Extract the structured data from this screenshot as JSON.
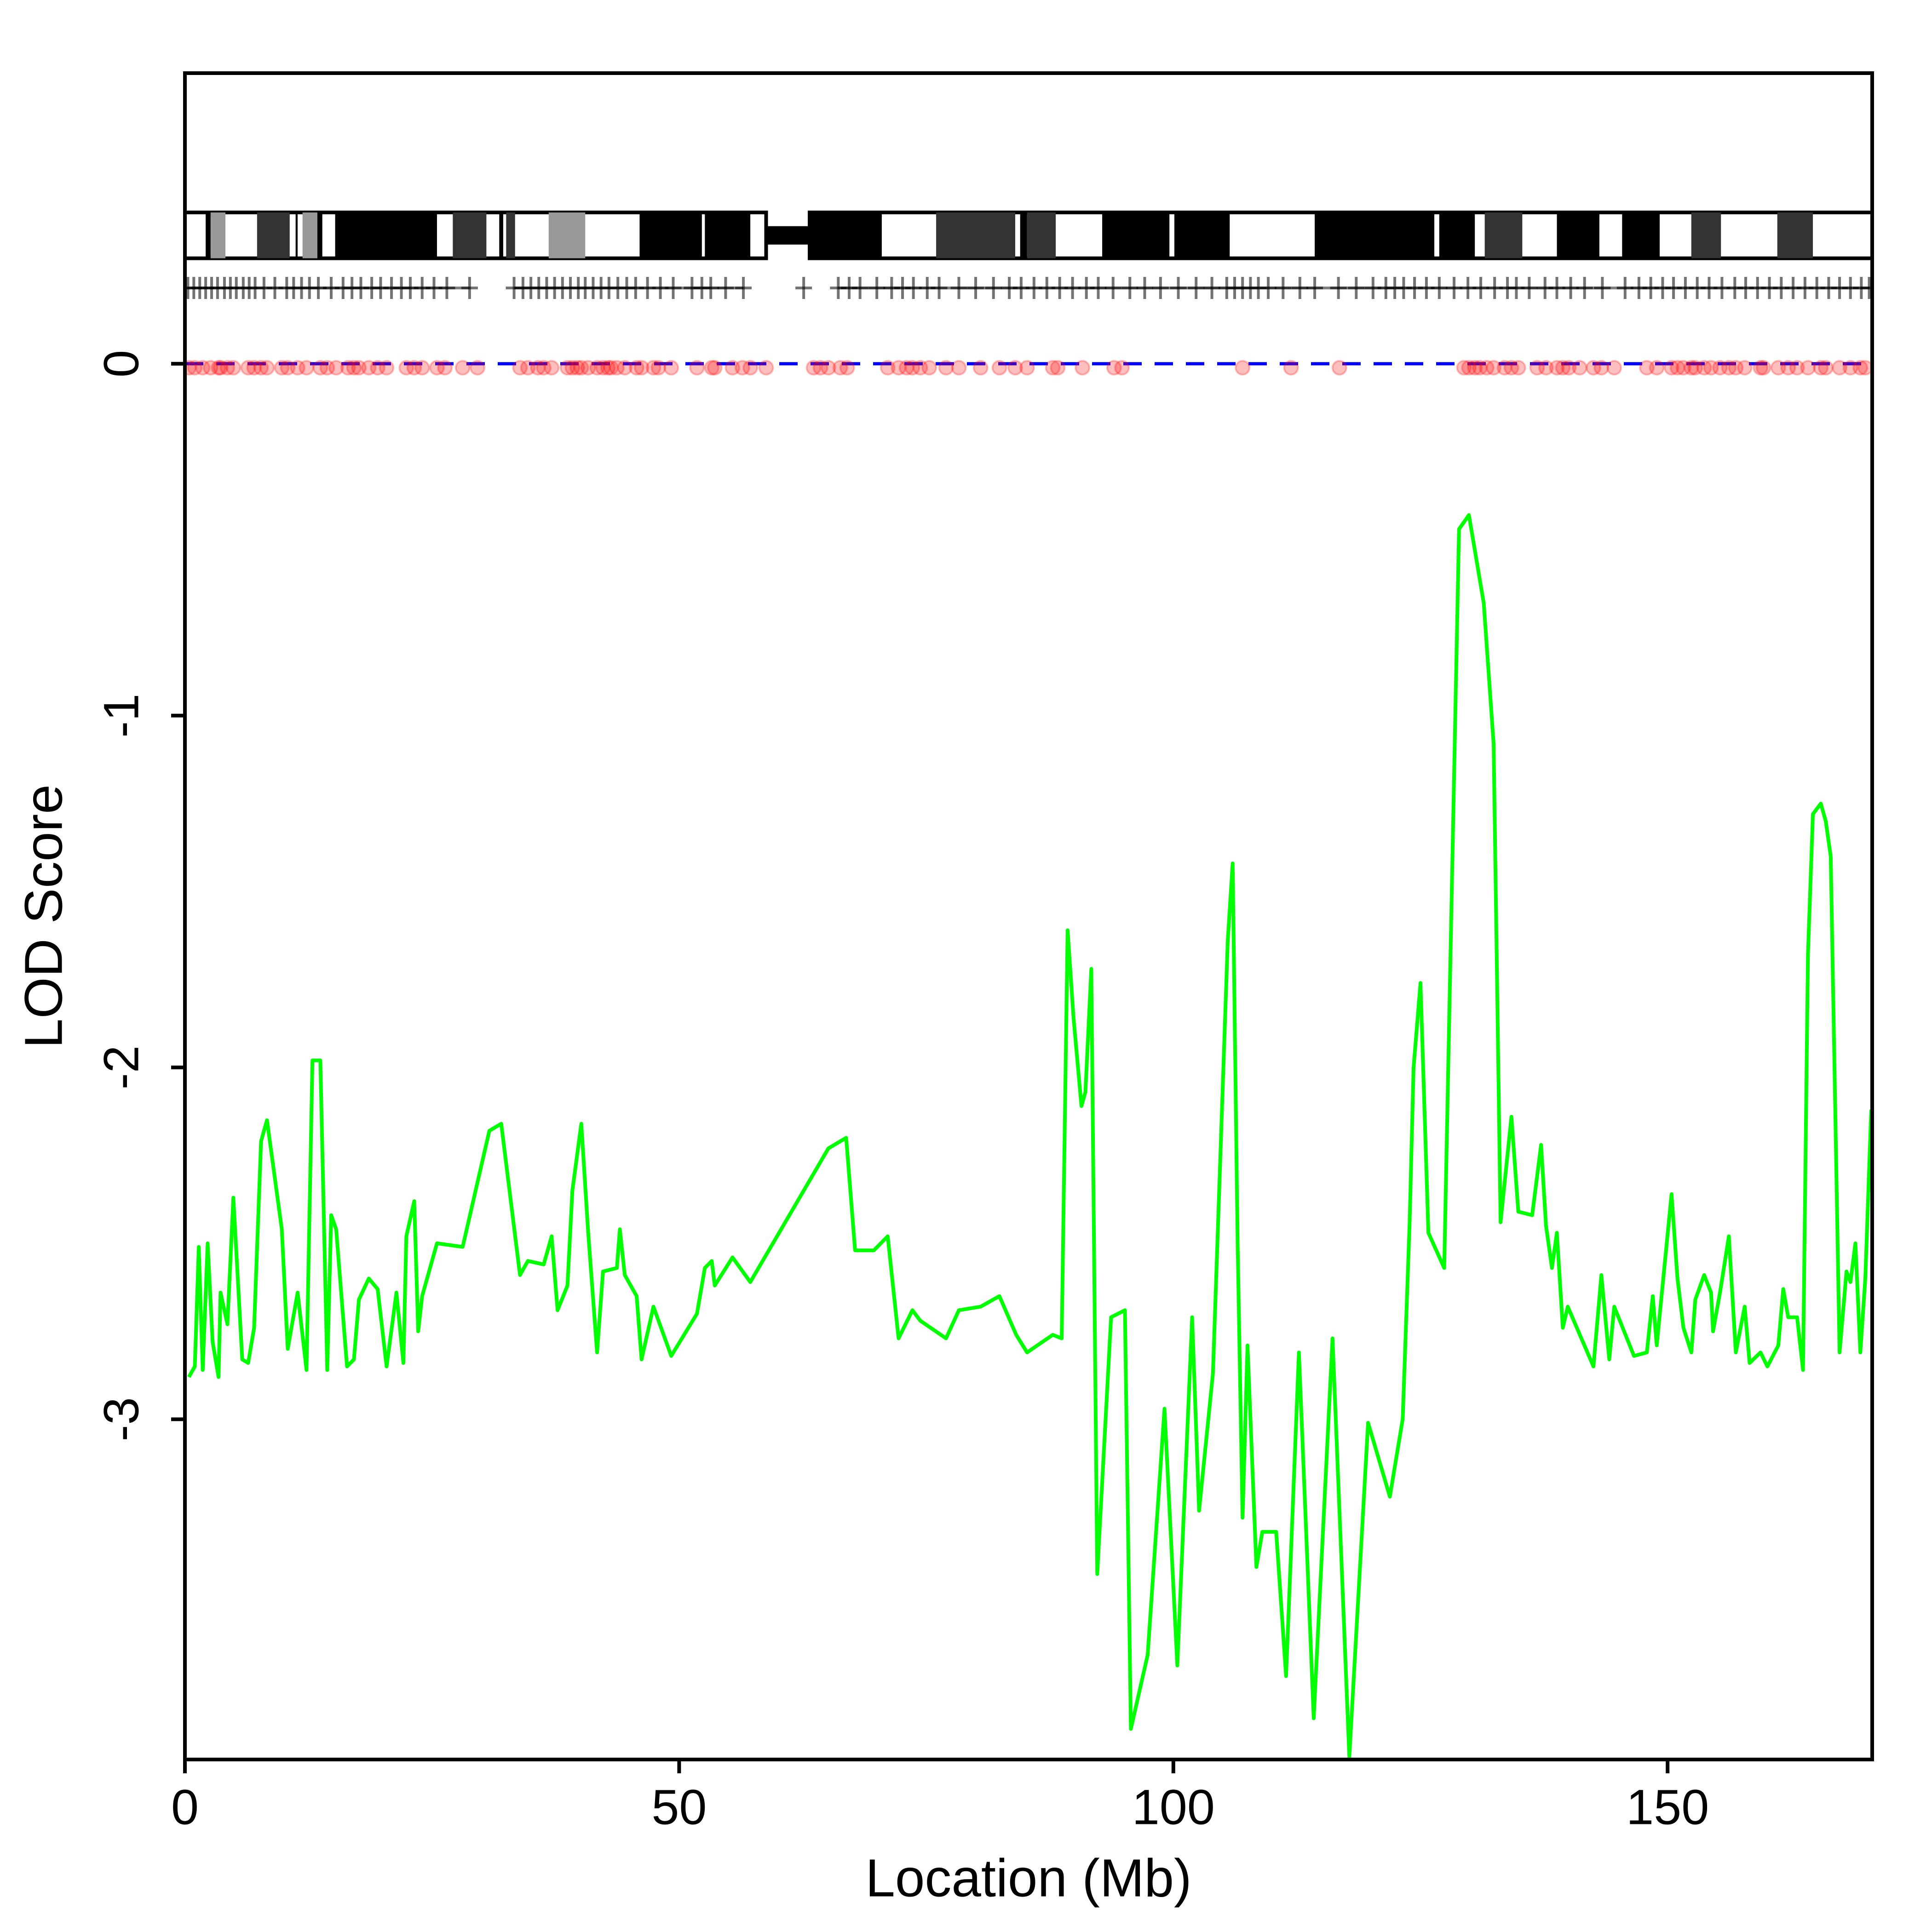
{
  "chart_data": {
    "type": "line",
    "x_label": "Location (Mb)",
    "y_label": "LOD Score",
    "xlim": [
      0,
      170.7
    ],
    "ylim": [
      -3.967,
      0.826
    ],
    "xticks": [
      0,
      50,
      100,
      150
    ],
    "yticks": [
      -3,
      -2,
      -1,
      0
    ],
    "color": "#00ff00",
    "reference_line": {
      "value": 0,
      "color": "#0000ff"
    },
    "x": [
      0.4,
      1.0,
      1.4,
      1.8,
      2.3,
      2.8,
      3.4,
      3.6,
      4.3,
      4.9,
      5.8,
      6.4,
      7.0,
      7.7,
      8.3,
      9.8,
      10.4,
      11.4,
      12.3,
      12.9,
      13.7,
      14.4,
      14.8,
      15.3,
      16.4,
      17.1,
      17.6,
      18.6,
      19.5,
      20.4,
      21.4,
      22.1,
      22.4,
      23.2,
      23.6,
      24.0,
      25.5,
      28.1,
      30.8,
      32.0,
      33.9,
      34.7,
      36.3,
      37.1,
      37.7,
      38.7,
      39.2,
      40.1,
      40.8,
      41.7,
      42.3,
      43.7,
      44.0,
      44.5,
      45.7,
      46.2,
      47.4,
      49.2,
      51.8,
      52.6,
      53.3,
      53.6,
      55.4,
      57.2,
      65.1,
      66.9,
      67.8,
      69.7,
      71.1,
      72.2,
      73.6,
      74.4,
      77.0,
      78.3,
      80.5,
      82.4,
      84.1,
      85.2,
      87.8,
      88.7,
      89.3,
      89.9,
      90.7,
      91.1,
      91.7,
      92.3,
      93.7,
      95.1,
      95.7,
      97.4,
      99.1,
      100.4,
      101.9,
      102.6,
      104.0,
      105.5,
      106.0,
      106.5,
      107.0,
      107.5,
      108.4,
      109.0,
      110.4,
      111.4,
      112.7,
      114.2,
      116.1,
      117.8,
      119.7,
      121.9,
      123.2,
      123.9,
      124.3,
      125.0,
      125.8,
      127.4,
      128.9,
      129.9,
      131.4,
      132.4,
      133.1,
      134.2,
      134.9,
      136.3,
      137.2,
      137.7,
      138.3,
      138.8,
      139.4,
      139.9,
      142.5,
      143.3,
      144.1,
      144.6,
      146.6,
      147.9,
      148.5,
      148.9,
      150.4,
      151.0,
      151.6,
      152.4,
      152.8,
      153.7,
      154.4,
      154.6,
      155.3,
      156.2,
      156.9,
      157.8,
      158.3,
      159.4,
      160.1,
      161.2,
      161.7,
      162.2,
      163.1,
      163.7,
      164.2,
      164.7,
      165.5,
      166.0,
      166.5,
      167.4,
      168.1,
      168.5,
      169.0,
      169.5,
      170.0,
      170.6
    ],
    "values": [
      -2.88,
      -2.85,
      -2.51,
      -2.86,
      -2.5,
      -2.78,
      -2.88,
      -2.64,
      -2.73,
      -2.37,
      -2.83,
      -2.84,
      -2.74,
      -2.21,
      -2.15,
      -2.46,
      -2.8,
      -2.64,
      -2.86,
      -1.98,
      -1.98,
      -2.86,
      -2.42,
      -2.46,
      -2.85,
      -2.83,
      -2.66,
      -2.6,
      -2.63,
      -2.85,
      -2.64,
      -2.84,
      -2.48,
      -2.38,
      -2.75,
      -2.65,
      -2.5,
      -2.51,
      -2.18,
      -2.16,
      -2.59,
      -2.55,
      -2.56,
      -2.48,
      -2.69,
      -2.62,
      -2.35,
      -2.16,
      -2.47,
      -2.81,
      -2.58,
      -2.57,
      -2.46,
      -2.59,
      -2.65,
      -2.83,
      -2.68,
      -2.82,
      -2.7,
      -2.57,
      -2.55,
      -2.62,
      -2.54,
      -2.61,
      -2.23,
      -2.2,
      -2.52,
      -2.52,
      -2.48,
      -2.77,
      -2.69,
      -2.72,
      -2.77,
      -2.69,
      -2.68,
      -2.65,
      -2.76,
      -2.81,
      -2.76,
      -2.77,
      -1.61,
      -1.86,
      -2.11,
      -2.07,
      -1.72,
      -3.44,
      -2.71,
      -2.69,
      -3.88,
      -3.67,
      -2.97,
      -3.7,
      -2.71,
      -3.26,
      -2.87,
      -1.64,
      -1.42,
      -2.5,
      -3.28,
      -2.79,
      -3.42,
      -3.32,
      -3.32,
      -3.73,
      -2.81,
      -3.85,
      -2.77,
      -3.96,
      -3.01,
      -3.22,
      -3.0,
      -2.44,
      -2.0,
      -1.76,
      -2.47,
      -2.57,
      -0.47,
      -0.43,
      -0.68,
      -1.08,
      -2.44,
      -2.14,
      -2.41,
      -2.42,
      -2.22,
      -2.45,
      -2.57,
      -2.47,
      -2.74,
      -2.68,
      -2.85,
      -2.59,
      -2.83,
      -2.68,
      -2.82,
      -2.81,
      -2.65,
      -2.79,
      -2.36,
      -2.6,
      -2.74,
      -2.81,
      -2.66,
      -2.59,
      -2.64,
      -2.75,
      -2.64,
      -2.48,
      -2.81,
      -2.68,
      -2.84,
      -2.81,
      -2.85,
      -2.79,
      -2.63,
      -2.71,
      -2.71,
      -2.86,
      -1.68,
      -1.28,
      -1.25,
      -1.3,
      -1.4,
      -2.81,
      -2.58,
      -2.61,
      -2.5,
      -2.81,
      -2.6,
      -2.12
    ],
    "centromere": [
      58.8,
      63.2
    ],
    "bands": [
      {
        "start": 2.1,
        "end": 2.6,
        "color": "#000000"
      },
      {
        "start": 2.6,
        "end": 4.1,
        "color": "#999999"
      },
      {
        "start": 7.3,
        "end": 10.6,
        "color": "#333333"
      },
      {
        "start": 11.2,
        "end": 11.4,
        "color": "#000000"
      },
      {
        "start": 11.9,
        "end": 13.4,
        "color": "#999999"
      },
      {
        "start": 13.4,
        "end": 13.9,
        "color": "#000000"
      },
      {
        "start": 15.2,
        "end": 25.5,
        "color": "#000000"
      },
      {
        "start": 27.1,
        "end": 30.5,
        "color": "#333333"
      },
      {
        "start": 31.8,
        "end": 32.2,
        "color": "#000000"
      },
      {
        "start": 32.5,
        "end": 33.4,
        "color": "#333333"
      },
      {
        "start": 36.8,
        "end": 40.5,
        "color": "#999999"
      },
      {
        "start": 46.0,
        "end": 52.3,
        "color": "#000000"
      },
      {
        "start": 52.6,
        "end": 57.2,
        "color": "#000000"
      },
      {
        "start": 63.2,
        "end": 70.5,
        "color": "#000000"
      },
      {
        "start": 76.0,
        "end": 84.0,
        "color": "#333333"
      },
      {
        "start": 84.5,
        "end": 85.2,
        "color": "#000000"
      },
      {
        "start": 85.2,
        "end": 88.1,
        "color": "#333333"
      },
      {
        "start": 92.8,
        "end": 99.6,
        "color": "#000000"
      },
      {
        "start": 100.1,
        "end": 105.7,
        "color": "#000000"
      },
      {
        "start": 114.3,
        "end": 126.4,
        "color": "#000000"
      },
      {
        "start": 126.9,
        "end": 130.5,
        "color": "#000000"
      },
      {
        "start": 131.5,
        "end": 135.3,
        "color": "#333333"
      },
      {
        "start": 138.8,
        "end": 143.1,
        "color": "#000000"
      },
      {
        "start": 145.4,
        "end": 149.2,
        "color": "#000000"
      },
      {
        "start": 152.4,
        "end": 155.4,
        "color": "#333333"
      },
      {
        "start": 161.1,
        "end": 164.7,
        "color": "#333333"
      }
    ],
    "markers": [
      0.3,
      0.9,
      1.5,
      2.1,
      2.7,
      3.3,
      4.0,
      4.6,
      5.2,
      5.9,
      6.5,
      7.1,
      8.0,
      9.1,
      10.3,
      11.0,
      11.8,
      12.6,
      13.5,
      14.8,
      16.0,
      16.9,
      17.8,
      18.9,
      19.8,
      20.9,
      21.9,
      22.8,
      24.0,
      25.2,
      26.5,
      28.8,
      33.3,
      34.2,
      35.0,
      35.8,
      36.6,
      37.4,
      38.2,
      39.0,
      39.8,
      40.5,
      41.3,
      42.1,
      42.9,
      43.8,
      44.7,
      45.6,
      46.8,
      48.1,
      49.4,
      51.3,
      52.3,
      53.2,
      54.7,
      56.5,
      62.6,
      66.1,
      67.2,
      68.3,
      70.0,
      71.5,
      72.6,
      73.7,
      75.1,
      76.3,
      78.3,
      80.0,
      81.8,
      83.4,
      84.6,
      85.9,
      87.2,
      88.5,
      89.8,
      91.2,
      92.4,
      93.9,
      95.6,
      97.1,
      98.7,
      100.5,
      102.3,
      103.9,
      105.4,
      106.2,
      107.0,
      107.8,
      108.6,
      109.6,
      111.1,
      112.8,
      114.3,
      116.7,
      118.5,
      120.2,
      121.5,
      122.4,
      123.3,
      124.4,
      125.6,
      126.9,
      128.4,
      129.8,
      131.1,
      132.5,
      133.8,
      134.7,
      136.0,
      137.6,
      138.8,
      140.2,
      141.6,
      143.4,
      145.7,
      147.1,
      148.3,
      149.5,
      150.6,
      151.8,
      153.0,
      154.2,
      155.5,
      156.8,
      157.9,
      159.1,
      160.3,
      161.5,
      162.7,
      163.9,
      165.1,
      166.3,
      167.4,
      168.5,
      169.6,
      170.4
    ],
    "marker_color": "#000000",
    "snps": [
      0.4,
      1.0,
      1.8,
      2.6,
      3.4,
      3.6,
      4.3,
      4.9,
      6.4,
      7.0,
      7.7,
      8.3,
      9.8,
      10.4,
      11.4,
      12.3,
      13.7,
      14.4,
      15.3,
      16.5,
      17.1,
      17.6,
      18.6,
      19.5,
      20.4,
      22.4,
      23.2,
      24.0,
      25.5,
      26.3,
      28.1,
      29.6,
      33.9,
      34.7,
      35.7,
      36.3,
      37.1,
      38.7,
      39.2,
      39.7,
      40.1,
      40.8,
      41.7,
      42.3,
      42.8,
      43.1,
      43.7,
      44.5,
      45.7,
      46.2,
      47.4,
      47.9,
      49.2,
      51.8,
      53.3,
      53.6,
      55.4,
      56.4,
      57.2,
      58.8,
      63.6,
      64.3,
      65.1,
      66.3,
      67.0,
      71.1,
      72.2,
      73.0,
      73.6,
      74.4,
      75.3,
      77.0,
      78.3,
      80.5,
      82.4,
      84.0,
      85.2,
      87.8,
      88.3,
      90.8,
      94.0,
      94.8,
      107.0,
      111.9,
      116.8,
      129.4,
      129.9,
      130.5,
      131.0,
      131.7,
      132.4,
      133.5,
      134.2,
      134.9,
      136.8,
      137.7,
      138.8,
      139.4,
      140.0,
      141.1,
      142.5,
      143.3,
      144.6,
      147.9,
      148.9,
      150.4,
      151.0,
      151.6,
      152.4,
      152.8,
      153.7,
      154.4,
      155.3,
      156.2,
      156.9,
      157.8,
      159.4,
      159.7,
      161.2,
      162.2,
      163.1,
      164.2,
      165.5,
      166.0,
      167.4,
      168.5,
      169.5,
      170.0
    ],
    "snp_color": "#ff0000"
  }
}
